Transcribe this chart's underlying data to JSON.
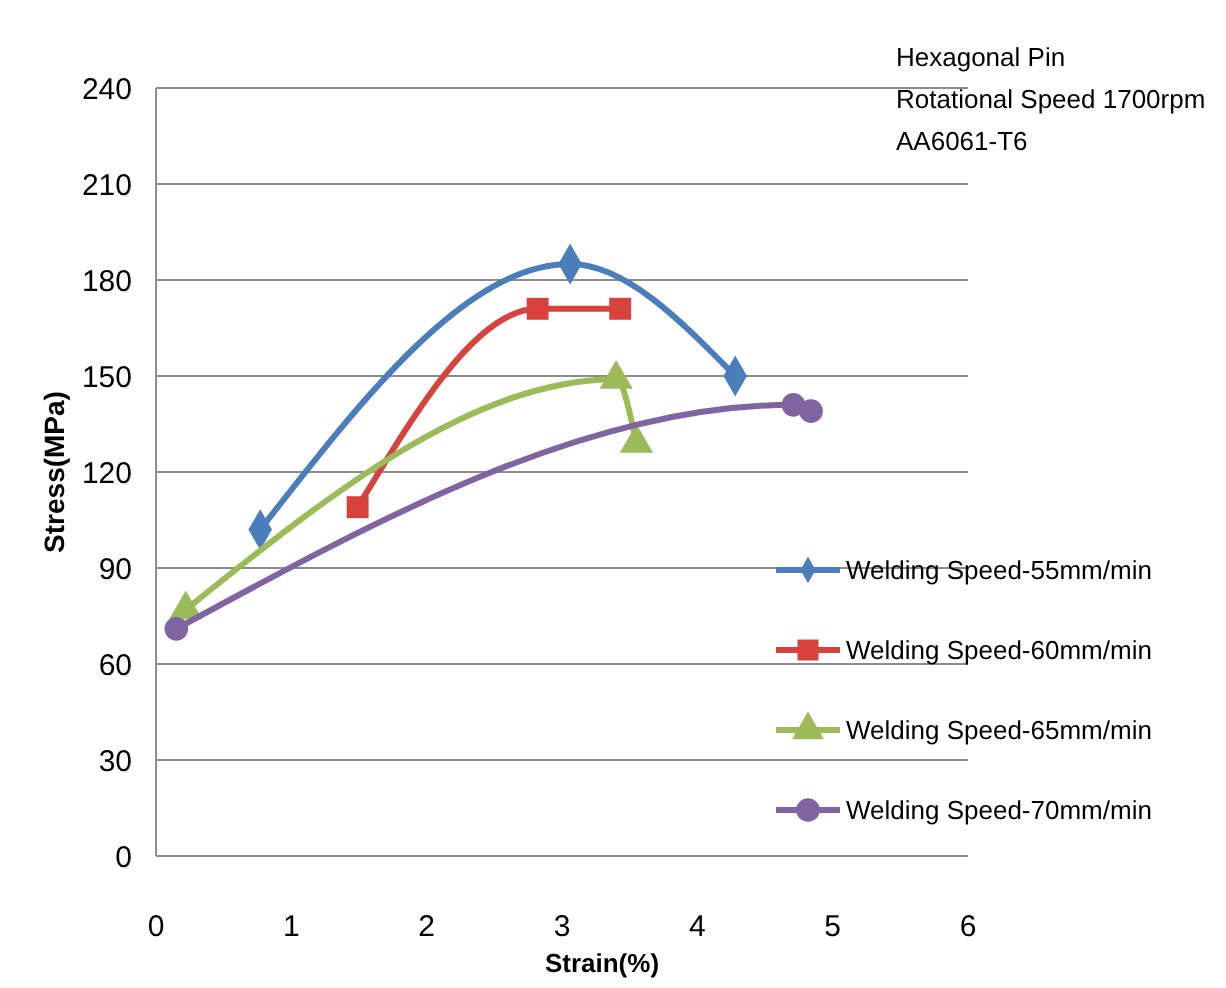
{
  "chart_data": {
    "type": "line",
    "xlabel": "Strain(%)",
    "ylabel": "Stress(MPa)",
    "annotations": [
      "Hexagonal Pin",
      "Rotational Speed 1700rpm",
      "AA6061-T6"
    ],
    "xlim": [
      0,
      6
    ],
    "xticks": [
      0,
      1,
      2,
      3,
      4,
      5,
      6
    ],
    "ylim": [
      0,
      240
    ],
    "yticks": [
      0,
      30,
      60,
      90,
      120,
      150,
      180,
      210,
      240
    ],
    "grid": "y",
    "legend": "right",
    "line_style": "solid",
    "series": [
      {
        "name": "Welding Speed-55mm/min",
        "color": "#4a7ebb",
        "marker": "diamond",
        "x": [
          0.77,
          3.06,
          4.28
        ],
        "values": [
          102,
          185,
          150
        ]
      },
      {
        "name": "Welding Speed-60mm/min",
        "color": "#d9413d",
        "marker": "square",
        "x": [
          1.49,
          2.82,
          3.43
        ],
        "values": [
          109,
          171,
          171
        ]
      },
      {
        "name": "Welding Speed-65mm/min",
        "color": "#9bbb59",
        "marker": "triangle",
        "x": [
          0.22,
          3.4,
          3.55
        ],
        "values": [
          77,
          149,
          129
        ]
      },
      {
        "name": "Welding Speed-70mm/min",
        "color": "#8064a2",
        "marker": "circle",
        "x": [
          0.15,
          4.71,
          4.84
        ],
        "values": [
          71,
          141,
          139
        ]
      }
    ]
  }
}
